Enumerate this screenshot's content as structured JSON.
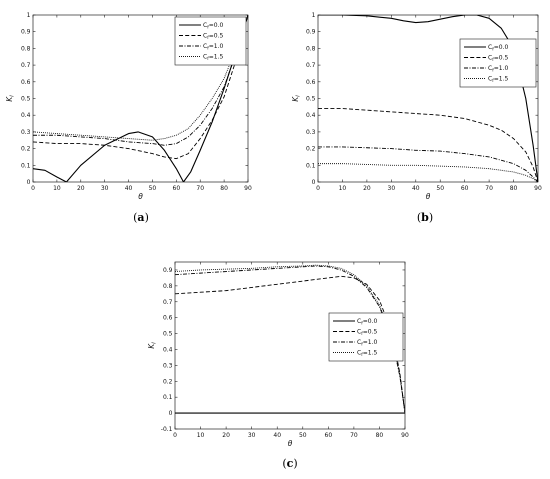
{
  "chart_data": [
    {
      "type": "line",
      "caption": "(a)",
      "xlabel": "θ",
      "ylabel": "K",
      "ylabel_sub": "I",
      "xlim": [
        0,
        90
      ],
      "ylim": [
        0,
        1
      ],
      "xticks": [
        "0",
        "10",
        "20",
        "30",
        "40",
        "50",
        "60",
        "70",
        "80",
        "90"
      ],
      "yticks": [
        "0",
        "0.1",
        "0.2",
        "0.3",
        "0.4",
        "0.5",
        "0.6",
        "0.7",
        "0.8",
        "0.9",
        "1"
      ],
      "legend_position": "top-right",
      "series": [
        {
          "name": "C_f=0.0",
          "label_base": "C",
          "label_sub": "f",
          "label_rest": "=0.0",
          "dash": "solid",
          "x": [
            0,
            5,
            10,
            14,
            20,
            30,
            40,
            44,
            50,
            55,
            60,
            63,
            66,
            70,
            75,
            80,
            85,
            90
          ],
          "y": [
            0.08,
            0.07,
            0.03,
            0.0,
            0.1,
            0.22,
            0.29,
            0.3,
            0.27,
            0.19,
            0.08,
            0.0,
            0.06,
            0.19,
            0.36,
            0.56,
            0.78,
            1.0
          ]
        },
        {
          "name": "C_f=0.5",
          "label_base": "C",
          "label_sub": "f",
          "label_rest": "=0.5",
          "dash": "dashed",
          "x": [
            0,
            10,
            20,
            30,
            40,
            50,
            55,
            60,
            65,
            70,
            75,
            80,
            85,
            90
          ],
          "y": [
            0.24,
            0.23,
            0.23,
            0.22,
            0.2,
            0.17,
            0.15,
            0.14,
            0.17,
            0.26,
            0.37,
            0.51,
            0.73,
            1.0
          ]
        },
        {
          "name": "C_f=1.0",
          "label_base": "C",
          "label_sub": "f",
          "label_rest": "=1.0",
          "dash": "dashdot",
          "x": [
            0,
            10,
            20,
            30,
            40,
            50,
            55,
            60,
            65,
            70,
            75,
            80,
            85,
            90
          ],
          "y": [
            0.28,
            0.28,
            0.27,
            0.26,
            0.24,
            0.23,
            0.22,
            0.23,
            0.27,
            0.34,
            0.44,
            0.57,
            0.77,
            1.0
          ]
        },
        {
          "name": "C_f=1.5",
          "label_base": "C",
          "label_sub": "f",
          "label_rest": "=1.5",
          "dash": "dotted",
          "x": [
            0,
            10,
            20,
            30,
            40,
            50,
            55,
            60,
            65,
            70,
            75,
            80,
            85,
            90
          ],
          "y": [
            0.3,
            0.29,
            0.28,
            0.27,
            0.26,
            0.25,
            0.26,
            0.28,
            0.32,
            0.4,
            0.5,
            0.62,
            0.8,
            1.0
          ]
        }
      ]
    },
    {
      "type": "line",
      "caption": "(b)",
      "xlabel": "θ",
      "ylabel": "K",
      "ylabel_sub": "I",
      "xlim": [
        0,
        90
      ],
      "ylim": [
        0,
        1
      ],
      "xticks": [
        "0",
        "10",
        "20",
        "30",
        "40",
        "50",
        "60",
        "70",
        "80",
        "90"
      ],
      "yticks": [
        "0",
        "0.1",
        "0.2",
        "0.3",
        "0.4",
        "0.5",
        "0.6",
        "0.7",
        "0.8",
        "0.9",
        "1"
      ],
      "legend_position": "top-right",
      "series": [
        {
          "name": "C_f=0.0",
          "label_base": "C",
          "label_sub": "f",
          "label_rest": "=0.0",
          "dash": "solid",
          "x": [
            0,
            10,
            20,
            30,
            35,
            40,
            45,
            50,
            55,
            60,
            65,
            70,
            75,
            80,
            85,
            88,
            90
          ],
          "y": [
            1.0,
            1.0,
            0.995,
            0.98,
            0.965,
            0.955,
            0.96,
            0.975,
            0.99,
            1.0,
            1.0,
            0.98,
            0.92,
            0.8,
            0.5,
            0.22,
            0.0
          ]
        },
        {
          "name": "C_f=0.5",
          "label_base": "C",
          "label_sub": "f",
          "label_rest": "=0.5",
          "dash": "dashed",
          "x": [
            0,
            10,
            20,
            30,
            40,
            50,
            60,
            70,
            75,
            80,
            85,
            88,
            90
          ],
          "y": [
            0.44,
            0.44,
            0.43,
            0.42,
            0.41,
            0.4,
            0.38,
            0.34,
            0.31,
            0.26,
            0.18,
            0.09,
            0.0
          ]
        },
        {
          "name": "C_f=1.0",
          "label_base": "C",
          "label_sub": "f",
          "label_rest": "=1.0",
          "dash": "dashdot",
          "x": [
            0,
            10,
            20,
            30,
            40,
            50,
            60,
            70,
            80,
            85,
            88,
            90
          ],
          "y": [
            0.21,
            0.21,
            0.205,
            0.2,
            0.19,
            0.185,
            0.17,
            0.15,
            0.11,
            0.07,
            0.03,
            0.0
          ]
        },
        {
          "name": "C_f=1.5",
          "label_base": "C",
          "label_sub": "f",
          "label_rest": "=1.5",
          "dash": "dotted",
          "x": [
            0,
            10,
            20,
            30,
            40,
            50,
            60,
            70,
            80,
            85,
            88,
            90
          ],
          "y": [
            0.11,
            0.11,
            0.105,
            0.1,
            0.1,
            0.095,
            0.09,
            0.08,
            0.06,
            0.04,
            0.02,
            0.0
          ]
        }
      ]
    },
    {
      "type": "line",
      "caption": "(c)",
      "xlabel": "θ",
      "ylabel": "K",
      "ylabel_sub": "I",
      "xlim": [
        0,
        90
      ],
      "ylim": [
        -0.1,
        0.95
      ],
      "xticks": [
        "0",
        "10",
        "20",
        "30",
        "40",
        "50",
        "60",
        "70",
        "80",
        "90"
      ],
      "yticks": [
        "-0.1",
        "0",
        "0.1",
        "0.2",
        "0.3",
        "0.4",
        "0.5",
        "0.6",
        "0.7",
        "0.8",
        "0.9"
      ],
      "legend_position": "center-right",
      "series": [
        {
          "name": "C_f=0.0",
          "label_base": "C",
          "label_sub": "f",
          "label_rest": "=0.0",
          "dash": "solid",
          "x": [
            0,
            90
          ],
          "y": [
            0,
            0
          ]
        },
        {
          "name": "C_f=0.5",
          "label_base": "C",
          "label_sub": "f",
          "label_rest": "=0.5",
          "dash": "dashed",
          "x": [
            0,
            10,
            20,
            30,
            40,
            50,
            60,
            65,
            70,
            75,
            80,
            85,
            88,
            90
          ],
          "y": [
            0.75,
            0.76,
            0.77,
            0.79,
            0.81,
            0.83,
            0.85,
            0.86,
            0.85,
            0.81,
            0.71,
            0.5,
            0.25,
            0.0
          ]
        },
        {
          "name": "C_f=1.0",
          "label_base": "C",
          "label_sub": "f",
          "label_rest": "=1.0",
          "dash": "dashdot",
          "x": [
            0,
            10,
            20,
            30,
            40,
            50,
            55,
            60,
            65,
            70,
            75,
            80,
            85,
            88,
            90
          ],
          "y": [
            0.87,
            0.88,
            0.89,
            0.9,
            0.91,
            0.92,
            0.925,
            0.92,
            0.9,
            0.86,
            0.79,
            0.67,
            0.46,
            0.23,
            0.0
          ]
        },
        {
          "name": "C_f=1.5",
          "label_base": "C",
          "label_sub": "f",
          "label_rest": "=1.5",
          "dash": "dotted",
          "x": [
            0,
            10,
            20,
            30,
            40,
            50,
            55,
            60,
            65,
            70,
            75,
            80,
            85,
            88,
            90
          ],
          "y": [
            0.89,
            0.9,
            0.905,
            0.91,
            0.92,
            0.925,
            0.93,
            0.925,
            0.91,
            0.87,
            0.8,
            0.68,
            0.47,
            0.24,
            0.0
          ]
        }
      ]
    }
  ]
}
